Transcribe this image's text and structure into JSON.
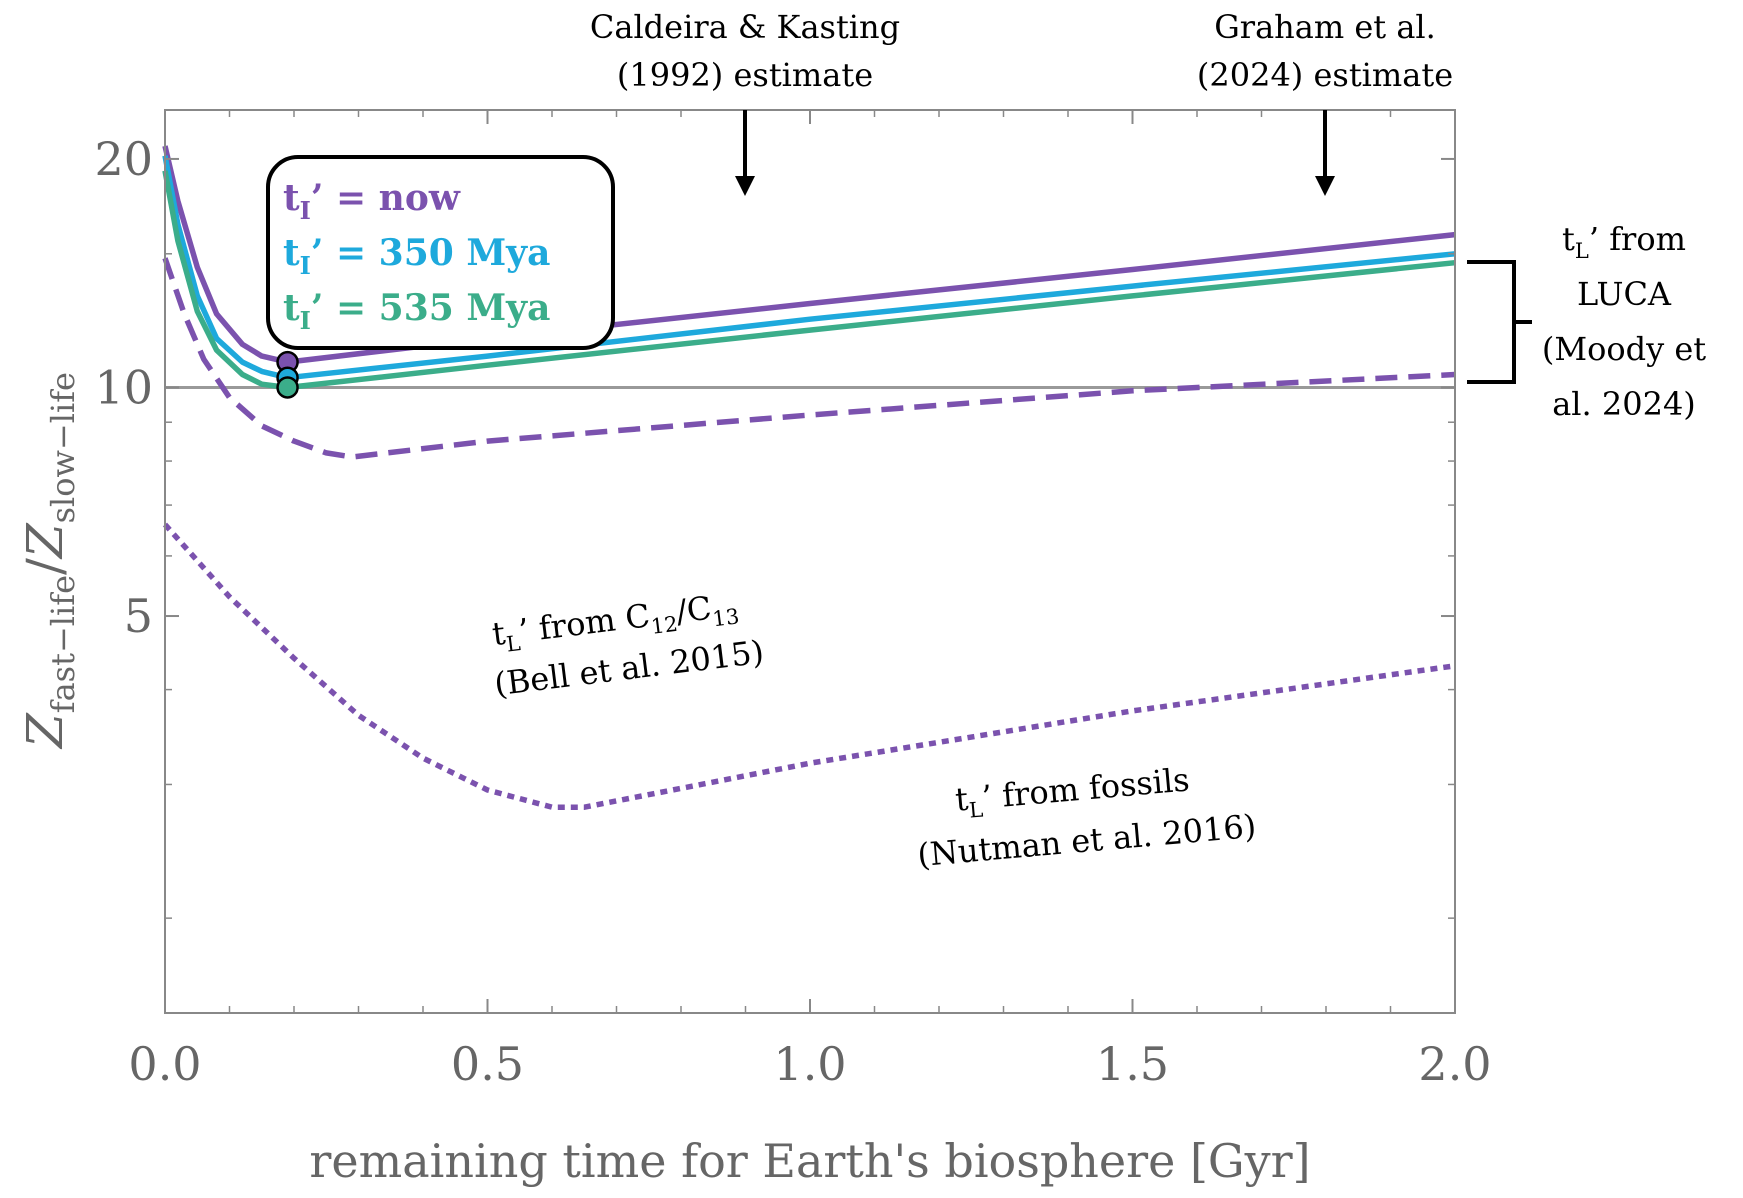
{
  "chart_data": {
    "type": "line",
    "xlabel": "remaining time for Earth's biosphere [Gyr]",
    "ylabel": {
      "base": "Z",
      "sub": "fast−life",
      "sep": "/",
      "base2": "Z",
      "sub2": "slow−life"
    },
    "xlim": [
      0,
      2.0
    ],
    "ylim": [
      1.5,
      23.2
    ],
    "yscale": "log",
    "x_ticks": [
      "0.0",
      "0.5",
      "1.0",
      "1.5",
      "2.0"
    ],
    "y_ticks": [
      "5",
      "10",
      "20"
    ],
    "colors": {
      "purple": "#7b52ae",
      "cyan": "#1ea9dc",
      "green": "#3bad8a",
      "ref": "#999999"
    },
    "reference_line": {
      "y": 10
    },
    "series": [
      {
        "name": "tI' = now",
        "color": "#7b52ae",
        "style": "solid",
        "x": [
          0,
          0.02,
          0.05,
          0.08,
          0.12,
          0.15,
          0.19,
          0.5,
          1.0,
          1.5,
          2.0
        ],
        "y": [
          20.8,
          17.6,
          14.4,
          12.5,
          11.4,
          11.0,
          10.8,
          11.6,
          12.9,
          14.3,
          15.9
        ]
      },
      {
        "name": "tI' = 350 Mya",
        "color": "#1ea9dc",
        "style": "solid",
        "x": [
          0,
          0.02,
          0.05,
          0.08,
          0.12,
          0.15,
          0.19,
          0.5,
          1.0,
          1.5,
          2.0
        ],
        "y": [
          20.2,
          16.4,
          13.2,
          11.6,
          10.8,
          10.5,
          10.3,
          11.0,
          12.3,
          13.6,
          15.0
        ]
      },
      {
        "name": "tI' = 535 Mya",
        "color": "#3bad8a",
        "style": "solid",
        "x": [
          0,
          0.02,
          0.05,
          0.08,
          0.12,
          0.15,
          0.19,
          0.5,
          1.0,
          1.5,
          2.0
        ],
        "y": [
          19.3,
          15.6,
          12.6,
          11.2,
          10.4,
          10.1,
          10.0,
          10.7,
          11.9,
          13.2,
          14.6
        ]
      },
      {
        "name": "tL' from C12/C13",
        "color": "#7b52ae",
        "style": "dashed",
        "x": [
          0,
          0.03,
          0.06,
          0.1,
          0.15,
          0.2,
          0.25,
          0.29,
          0.5,
          1.0,
          1.5,
          2.0
        ],
        "y": [
          14.8,
          12.5,
          10.9,
          9.7,
          8.9,
          8.5,
          8.2,
          8.1,
          8.5,
          9.2,
          9.9,
          10.4
        ]
      },
      {
        "name": "tL' from fossils",
        "color": "#7b52ae",
        "style": "dotted",
        "x": [
          0,
          0.1,
          0.2,
          0.3,
          0.4,
          0.5,
          0.6,
          0.65,
          1.0,
          1.5,
          2.0
        ],
        "y": [
          6.6,
          5.3,
          4.4,
          3.7,
          3.25,
          2.95,
          2.8,
          2.8,
          3.2,
          3.75,
          4.3
        ]
      }
    ],
    "markers": [
      {
        "x": 0.19,
        "y": 10.8,
        "color": "#7b52ae"
      },
      {
        "x": 0.19,
        "y": 10.3,
        "color": "#1ea9dc"
      },
      {
        "x": 0.19,
        "y": 10.0,
        "color": "#3bad8a"
      }
    ],
    "legend": {
      "placement": "top-left",
      "entries": [
        {
          "main": "t",
          "sub": "I",
          "rest": "’ = now",
          "color": "#7b52ae"
        },
        {
          "main": "t",
          "sub": "I",
          "rest": "’ = 350 Mya",
          "color": "#1ea9dc"
        },
        {
          "main": "t",
          "sub": "I",
          "rest": "’ = 535 Mya",
          "color": "#3bad8a"
        }
      ]
    },
    "annotations": {
      "caldeira": {
        "x": 0.9,
        "line1": "Caldeira & Kasting",
        "line2": "(1992) estimate"
      },
      "graham": {
        "x": 1.8,
        "line1": "Graham et al.",
        "line2": "(2024) estimate"
      },
      "luca": {
        "line1_main": "t",
        "line1_sub": "L",
        "line1_rest": "’ from",
        "line2": "LUCA",
        "line3": "(Moody et",
        "line4": "al. 2024)"
      },
      "bell": {
        "l1_main": "t",
        "l1_sub": "L",
        "l1_mid": "’ from C",
        "l1_sub2": "12",
        "l1_slash": "/C",
        "l1_sub3": "13",
        "line2": "(Bell et al. 2015)"
      },
      "nutman": {
        "l1_main": "t",
        "l1_sub": "L",
        "l1_rest": "’ from fossils",
        "line2": "(Nutman et al. 2016)"
      }
    }
  }
}
